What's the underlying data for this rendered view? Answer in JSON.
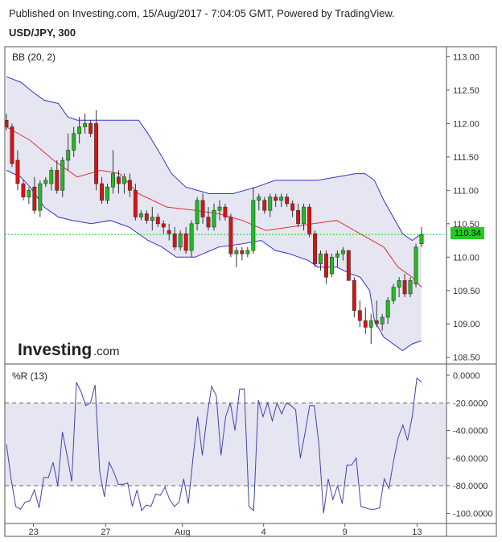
{
  "header": {
    "published": "Published on Investing.com, 15/Aug/2017 - 7:04:05 GMT, Powered by TradingView.",
    "symbol": "USD/JPY, 300"
  },
  "logo": {
    "brand": "Investing",
    "suffix": ".com"
  },
  "colors": {
    "up": "#22bb22",
    "down": "#dd1111",
    "band_line": "#3333cc",
    "band_fill": "#e6e6f2",
    "basis": "#e03030",
    "wr_line": "#4444aa",
    "current_price": "#22cc22"
  },
  "chart_data": [
    {
      "type": "candlestick",
      "title": "BB (20, 2)",
      "ylim": [
        108.4,
        113.15
      ],
      "y_ticks": [
        "113.00",
        "112.50",
        "112.00",
        "111.50",
        "111.00",
        "110.50",
        "110.00",
        "109.50",
        "109.00",
        "108.50"
      ],
      "x_ticks": [
        "23",
        "27",
        "Aug",
        "4",
        "9",
        "13"
      ],
      "current_price": "110.34",
      "ohlc": [
        [
          112.05,
          112.15,
          111.9,
          111.95
        ],
        [
          111.95,
          112.0,
          111.35,
          111.4
        ],
        [
          111.45,
          111.6,
          111.0,
          111.1
        ],
        [
          111.1,
          111.15,
          110.85,
          110.9
        ],
        [
          110.9,
          111.05,
          110.8,
          111.0
        ],
        [
          111.05,
          111.2,
          110.65,
          110.7
        ],
        [
          110.7,
          111.15,
          110.6,
          111.1
        ],
        [
          111.1,
          111.2,
          111.05,
          111.15
        ],
        [
          111.1,
          111.35,
          111.0,
          111.3
        ],
        [
          111.3,
          111.45,
          110.95,
          111.0
        ],
        [
          111.0,
          111.5,
          110.9,
          111.45
        ],
        [
          111.45,
          111.85,
          111.3,
          111.6
        ],
        [
          111.6,
          111.95,
          111.5,
          111.85
        ],
        [
          111.85,
          112.1,
          111.7,
          111.95
        ],
        [
          111.95,
          112.15,
          111.85,
          112.0
        ],
        [
          112.0,
          112.05,
          111.8,
          111.85
        ],
        [
          112.0,
          112.2,
          111.0,
          111.1
        ],
        [
          111.1,
          111.2,
          110.8,
          110.85
        ],
        [
          110.85,
          111.1,
          110.8,
          111.05
        ],
        [
          111.05,
          111.6,
          110.95,
          111.25
        ],
        [
          111.2,
          111.3,
          110.95,
          111.1
        ],
        [
          111.1,
          111.25,
          110.95,
          111.2
        ],
        [
          111.15,
          111.25,
          110.9,
          111.0
        ],
        [
          111.0,
          111.1,
          110.55,
          110.6
        ],
        [
          110.6,
          110.7,
          110.55,
          110.65
        ],
        [
          110.65,
          110.7,
          110.5,
          110.55
        ],
        [
          110.55,
          110.75,
          110.4,
          110.6
        ],
        [
          110.6,
          110.65,
          110.45,
          110.5
        ],
        [
          110.5,
          110.55,
          110.35,
          110.45
        ],
        [
          110.4,
          110.5,
          110.25,
          110.35
        ],
        [
          110.35,
          110.45,
          110.1,
          110.15
        ],
        [
          110.15,
          110.4,
          110.1,
          110.35
        ],
        [
          110.35,
          110.45,
          110.05,
          110.1
        ],
        [
          110.1,
          110.55,
          110.0,
          110.5
        ],
        [
          110.5,
          110.9,
          110.4,
          110.85
        ],
        [
          110.85,
          110.95,
          110.5,
          110.6
        ],
        [
          110.6,
          110.75,
          110.4,
          110.45
        ],
        [
          110.45,
          110.8,
          110.4,
          110.7
        ],
        [
          110.7,
          110.85,
          110.55,
          110.75
        ],
        [
          110.75,
          110.8,
          110.55,
          110.6
        ],
        [
          110.6,
          110.65,
          110.0,
          110.05
        ],
        [
          110.05,
          110.15,
          109.85,
          110.1
        ],
        [
          110.1,
          110.15,
          109.95,
          110.05
        ],
        [
          110.05,
          110.15,
          110.0,
          110.1
        ],
        [
          110.1,
          111.05,
          110.05,
          110.85
        ],
        [
          110.85,
          110.95,
          110.7,
          110.9
        ],
        [
          110.85,
          110.9,
          110.65,
          110.7
        ],
        [
          110.7,
          110.95,
          110.6,
          110.9
        ],
        [
          110.9,
          110.95,
          110.75,
          110.85
        ],
        [
          110.85,
          110.95,
          110.75,
          110.9
        ],
        [
          110.9,
          110.95,
          110.75,
          110.8
        ],
        [
          110.8,
          110.85,
          110.6,
          110.7
        ],
        [
          110.7,
          110.8,
          110.45,
          110.5
        ],
        [
          110.5,
          110.8,
          110.4,
          110.75
        ],
        [
          110.75,
          110.8,
          110.3,
          110.35
        ],
        [
          110.35,
          110.4,
          109.85,
          109.9
        ],
        [
          109.9,
          110.1,
          109.8,
          110.05
        ],
        [
          110.05,
          110.1,
          109.6,
          109.7
        ],
        [
          109.75,
          110.05,
          109.7,
          110.0
        ],
        [
          110.0,
          110.1,
          109.85,
          110.05
        ],
        [
          110.05,
          110.15,
          109.95,
          110.1
        ],
        [
          110.1,
          110.1,
          109.65,
          109.65
        ],
        [
          109.65,
          109.7,
          109.1,
          109.2
        ],
        [
          109.2,
          109.35,
          108.95,
          109.05
        ],
        [
          109.05,
          109.25,
          108.85,
          108.95
        ],
        [
          108.95,
          109.15,
          108.7,
          109.05
        ],
        [
          109.05,
          109.35,
          108.95,
          109.0
        ],
        [
          109.0,
          109.15,
          108.9,
          109.1
        ],
        [
          109.1,
          109.4,
          109.0,
          109.35
        ],
        [
          109.35,
          109.6,
          109.3,
          109.55
        ],
        [
          109.55,
          109.7,
          109.4,
          109.65
        ],
        [
          109.65,
          109.75,
          109.4,
          109.45
        ],
        [
          109.45,
          109.7,
          109.4,
          109.65
        ],
        [
          109.6,
          110.2,
          109.55,
          110.15
        ],
        [
          110.2,
          110.45,
          110.15,
          110.34
        ]
      ],
      "basis": [
        [
          0,
          111.95
        ],
        [
          5,
          111.75
        ],
        [
          10,
          111.45
        ],
        [
          15,
          111.2
        ],
        [
          20,
          111.3
        ],
        [
          24,
          111.25
        ],
        [
          28,
          110.95
        ],
        [
          34,
          110.75
        ],
        [
          40,
          110.7
        ],
        [
          45,
          110.65
        ],
        [
          50,
          110.55
        ],
        [
          55,
          110.4
        ],
        [
          60,
          110.45
        ],
        [
          65,
          110.5
        ],
        [
          70,
          110.55
        ],
        [
          75,
          110.35
        ],
        [
          80,
          110.15
        ],
        [
          83,
          109.85
        ],
        [
          86,
          109.7
        ],
        [
          88,
          109.55
        ]
      ],
      "upper_band": [
        [
          0,
          112.7
        ],
        [
          3,
          112.62
        ],
        [
          6,
          112.45
        ],
        [
          8,
          112.35
        ],
        [
          11,
          112.3
        ],
        [
          13,
          112.1
        ],
        [
          15,
          112.05
        ],
        [
          20,
          112.05
        ],
        [
          24,
          112.05
        ],
        [
          28,
          112.05
        ],
        [
          30,
          111.85
        ],
        [
          33,
          111.5
        ],
        [
          35,
          111.25
        ],
        [
          38,
          111.05
        ],
        [
          43,
          110.95
        ],
        [
          48,
          110.95
        ],
        [
          53,
          111.05
        ],
        [
          57,
          111.15
        ],
        [
          62,
          111.15
        ],
        [
          66,
          111.15
        ],
        [
          70,
          111.2
        ],
        [
          74,
          111.25
        ],
        [
          76,
          111.25
        ],
        [
          78,
          111.15
        ],
        [
          80,
          110.85
        ],
        [
          82,
          110.6
        ],
        [
          84,
          110.35
        ],
        [
          86,
          110.25
        ],
        [
          88,
          110.35
        ]
      ],
      "lower_band": [
        [
          0,
          111.3
        ],
        [
          3,
          111.2
        ],
        [
          5,
          111.05
        ],
        [
          8,
          110.75
        ],
        [
          11,
          110.6
        ],
        [
          14,
          110.55
        ],
        [
          18,
          110.5
        ],
        [
          22,
          110.55
        ],
        [
          26,
          110.45
        ],
        [
          30,
          110.25
        ],
        [
          33,
          110.15
        ],
        [
          36,
          110.0
        ],
        [
          40,
          110.0
        ],
        [
          45,
          110.15
        ],
        [
          50,
          110.2
        ],
        [
          54,
          110.25
        ],
        [
          57,
          110.1
        ],
        [
          60,
          110.05
        ],
        [
          62,
          110.0
        ],
        [
          64,
          109.95
        ],
        [
          66,
          109.85
        ],
        [
          70,
          109.85
        ],
        [
          73,
          109.75
        ],
        [
          75,
          109.7
        ],
        [
          77,
          109.5
        ],
        [
          78,
          109.05
        ],
        [
          80,
          108.8
        ],
        [
          82,
          108.7
        ],
        [
          84,
          108.6
        ],
        [
          86,
          108.7
        ],
        [
          88,
          108.75
        ]
      ]
    },
    {
      "type": "line",
      "title": "%R (13)",
      "ylim": [
        -105,
        0
      ],
      "y_ticks": [
        "0.0000",
        "-20.0000",
        "-40.0000",
        "-60.0000",
        "-80.0000",
        "-100.0000"
      ],
      "levels": [
        -20,
        -80
      ],
      "values": [
        -50,
        -75,
        -95,
        -97,
        -92,
        -91,
        -83,
        -96,
        -74,
        -74,
        -63,
        -80,
        -41,
        -58,
        -77,
        -5,
        -12,
        -22,
        -20,
        -7,
        -70,
        -88,
        -63,
        -70,
        -79,
        -79,
        -78,
        -95,
        -83,
        -98,
        -94,
        -95,
        -86,
        -87,
        -81,
        -90,
        -95,
        -92,
        -75,
        -93,
        -60,
        -30,
        -58,
        -30,
        -8,
        -15,
        -58,
        -30,
        -20,
        -40,
        -10,
        -10,
        -95,
        -98,
        -18,
        -30,
        -20,
        -33,
        -20,
        -28,
        -20,
        -22,
        -25,
        -60,
        -42,
        -22,
        -22,
        -50,
        -100,
        -75,
        -90,
        -80,
        -93,
        -65,
        -65,
        -60,
        -95,
        -96,
        -97,
        -97,
        -96,
        -75,
        -82,
        -62,
        -45,
        -36,
        -47,
        -30,
        -2,
        -5
      ]
    }
  ]
}
